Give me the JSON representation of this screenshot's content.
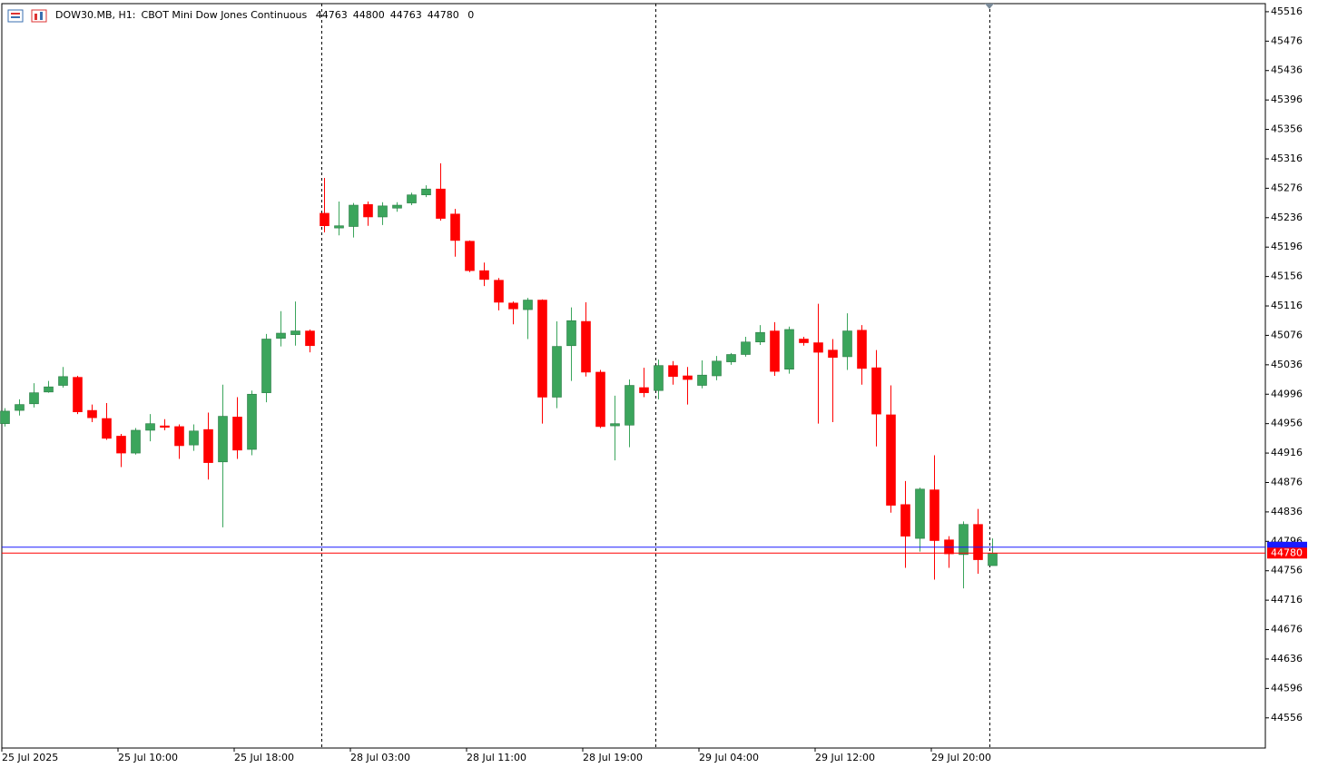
{
  "chart_data": {
    "type": "candlestick",
    "title": "DOW30.MB, H1:",
    "subtitle": "CBOT Mini Dow Jones Continuous",
    "volume": 0,
    "up_color": "#3ba55c",
    "down_color": "#ff0000",
    "ask": 44788,
    "ask_color": "#1a1aff",
    "ylim": [
      44515,
      45527
    ],
    "yticks": [
      45516,
      45476,
      45436,
      45396,
      45356,
      45316,
      45276,
      45236,
      45196,
      45156,
      45116,
      45076,
      45036,
      44996,
      44956,
      44916,
      44876,
      44836,
      44796,
      44756,
      44716,
      44676,
      44636,
      44596,
      44556
    ],
    "categories": [
      "25 Jul 2025",
      null,
      null,
      null,
      null,
      null,
      null,
      null,
      "25 Jul 10:00",
      null,
      null,
      null,
      null,
      null,
      null,
      null,
      "25 Jul 18:00",
      null,
      null,
      null,
      null,
      null,
      null,
      null,
      "28 Jul 03:00",
      null,
      null,
      null,
      null,
      null,
      null,
      null,
      "28 Jul 11:00",
      null,
      null,
      null,
      null,
      null,
      null,
      null,
      "28 Jul 19:00",
      null,
      null,
      null,
      null,
      null,
      null,
      null,
      "29 Jul 04:00",
      null,
      null,
      null,
      null,
      null,
      null,
      null,
      "29 Jul 12:00",
      null,
      null,
      null,
      null,
      null,
      null,
      null,
      "29 Jul 20:00",
      null,
      null,
      null,
      null
    ],
    "open": [
      44956,
      44974,
      44983,
      44999,
      45008,
      45019,
      44974,
      44963,
      44939,
      44916,
      44947,
      44953,
      44952,
      44927,
      44948,
      44904,
      44965,
      44921,
      44998,
      45072,
      45077,
      45082,
      45242,
      45222,
      45224,
      45254,
      45237,
      45249,
      45256,
      45267,
      45275,
      45241,
      45204,
      45164,
      45151,
      45120,
      45111,
      45124,
      44992,
      45062,
      45095,
      45026,
      44953,
      44954,
      45005,
      45001,
      45035,
      45021,
      45008,
      45021,
      45040,
      45050,
      45067,
      45082,
      45030,
      45071,
      45066,
      45056,
      45047,
      45083,
      45032,
      44968,
      44846,
      44800,
      44866,
      44798,
      44778,
      44819,
      44763
    ],
    "high": [
      44977,
      44989,
      45011,
      45014,
      45033,
      45021,
      44982,
      44984,
      44942,
      44950,
      44969,
      44962,
      44955,
      44955,
      44971,
      45009,
      44992,
      45001,
      45078,
      45109,
      45122,
      45084,
      45290,
      45258,
      45256,
      45258,
      45257,
      45257,
      45270,
      45280,
      45310,
      45248,
      45205,
      45175,
      45154,
      45122,
      45127,
      45125,
      45095,
      45114,
      45121,
      45029,
      44994,
      45016,
      45032,
      45043,
      45041,
      45033,
      45042,
      45048,
      45052,
      45074,
      45090,
      45094,
      45088,
      45074,
      45119,
      45071,
      45106,
      45090,
      45056,
      45008,
      44878,
      44869,
      44913,
      44803,
      44823,
      44840,
      44800
    ],
    "low": [
      44952,
      44967,
      44978,
      44998,
      45005,
      44969,
      44958,
      44934,
      44897,
      44914,
      44932,
      44947,
      44908,
      44919,
      44880,
      44815,
      44908,
      44913,
      44985,
      45061,
      45062,
      45053,
      45216,
      45212,
      45209,
      45225,
      45226,
      45244,
      45253,
      45264,
      45232,
      45183,
      45162,
      45143,
      45110,
      45091,
      45071,
      44956,
      44977,
      45014,
      45020,
      44950,
      44906,
      44924,
      44992,
      44989,
      45009,
      44982,
      45004,
      45015,
      45036,
      45047,
      45063,
      45021,
      45024,
      45062,
      44956,
      44958,
      45029,
      45009,
      44925,
      44835,
      44760,
      44782,
      44744,
      44760,
      44732,
      44752,
      44763
    ],
    "close": [
      44973,
      44982,
      44998,
      45006,
      45020,
      44972,
      44964,
      44936,
      44916,
      44947,
      44956,
      44951,
      44926,
      44946,
      44903,
      44966,
      44920,
      44996,
      45071,
      45079,
      45082,
      45062,
      45225,
      45225,
      45253,
      45237,
      45252,
      45253,
      45267,
      45275,
      45235,
      45205,
      45164,
      45152,
      45121,
      45112,
      45124,
      44992,
      45061,
      45096,
      45026,
      44952,
      44956,
      45008,
      44998,
      45035,
      45020,
      45016,
      45022,
      45041,
      45050,
      45067,
      45080,
      45027,
      45084,
      45066,
      45053,
      45046,
      45082,
      45031,
      44969,
      44845,
      44803,
      44867,
      44797,
      44779,
      44819,
      44771,
      44780
    ]
  }
}
